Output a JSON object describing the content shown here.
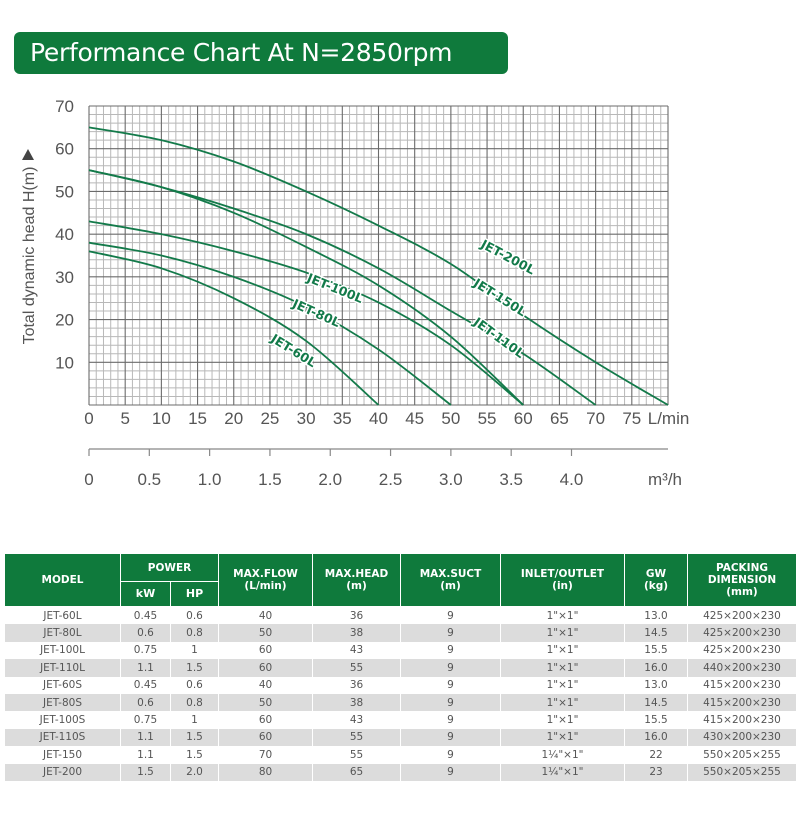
{
  "title": "Performance Chart At N=2850rpm",
  "chart_data": {
    "type": "line",
    "title": "Performance Chart At N=2850rpm",
    "xlabel": "L/min",
    "x2label": "m³/h",
    "ylabel": "Total dynamic head H(m)",
    "xlim": [
      0,
      80
    ],
    "ylim": [
      0,
      70
    ],
    "grid": true,
    "x_ticks": [
      0,
      5,
      10,
      15,
      20,
      25,
      30,
      35,
      40,
      45,
      50,
      55,
      60,
      65,
      70,
      75
    ],
    "x2_ticks": [
      "0",
      "0.5",
      "1.0",
      "1.5",
      "2.0",
      "2.5",
      "3.0",
      "3.5",
      "4.0"
    ],
    "y_ticks": [
      10,
      20,
      30,
      40,
      50,
      60,
      70
    ],
    "series": [
      {
        "name": "JET-200L",
        "x": [
          0,
          10,
          20,
          30,
          40,
          50,
          60,
          70,
          80
        ],
        "y": [
          65,
          62,
          57,
          50,
          42,
          33,
          21,
          10,
          0
        ]
      },
      {
        "name": "JET-150L",
        "x": [
          0,
          10,
          20,
          30,
          40,
          50,
          60,
          70
        ],
        "y": [
          55,
          51,
          46,
          40,
          32,
          22,
          12,
          0
        ]
      },
      {
        "name": "JET-110L",
        "x": [
          0,
          10,
          20,
          30,
          40,
          50,
          60
        ],
        "y": [
          55,
          51,
          45,
          37,
          28,
          16,
          0
        ]
      },
      {
        "name": "JET-100L",
        "x": [
          0,
          10,
          20,
          30,
          40,
          50,
          60
        ],
        "y": [
          43,
          40,
          36,
          31,
          24,
          14,
          0
        ]
      },
      {
        "name": "JET-80L",
        "x": [
          0,
          10,
          20,
          30,
          40,
          50
        ],
        "y": [
          38,
          35,
          30,
          23,
          13,
          0
        ]
      },
      {
        "name": "JET-60L",
        "x": [
          0,
          10,
          20,
          30,
          40
        ],
        "y": [
          36,
          32,
          25,
          15,
          0
        ]
      }
    ],
    "labels": [
      {
        "text": "JET-200L",
        "x": 54,
        "y": 37,
        "angle": 28
      },
      {
        "text": "JET-150L",
        "x": 53,
        "y": 28,
        "angle": 32
      },
      {
        "text": "JET-110L",
        "x": 53,
        "y": 19,
        "angle": 36
      },
      {
        "text": "JET-100L",
        "x": 30,
        "y": 29,
        "angle": 22
      },
      {
        "text": "JET-80L",
        "x": 28,
        "y": 23,
        "angle": 24
      },
      {
        "text": "JET-60L",
        "x": 25,
        "y": 15,
        "angle": 32
      }
    ],
    "colors": {
      "curve": "#137a4a",
      "grid_major": "#6b6b6b",
      "grid_minor": "#b8b8b8",
      "label": "#137a4a"
    }
  },
  "table": {
    "headers": {
      "model": "MODEL",
      "power": "POWER",
      "kw": "kW",
      "hp": "HP",
      "max_flow": "MAX.FLOW\n(L/min)",
      "max_head": "MAX.HEAD\n(m)",
      "max_suct": "MAX.SUCT\n(m)",
      "inlet_outlet": "INLET/OUTLET\n(in)",
      "gw": "GW\n(kg)",
      "packing": "PACKING\nDIMENSION\n(mm)"
    },
    "rows": [
      [
        "JET-60L",
        "0.45",
        "0.6",
        "40",
        "36",
        "9",
        "1\"×1\"",
        "13.0",
        "425×200×230"
      ],
      [
        "JET-80L",
        "0.6",
        "0.8",
        "50",
        "38",
        "9",
        "1\"×1\"",
        "14.5",
        "425×200×230"
      ],
      [
        "JET-100L",
        "0.75",
        "1",
        "60",
        "43",
        "9",
        "1\"×1\"",
        "15.5",
        "425×200×230"
      ],
      [
        "JET-110L",
        "1.1",
        "1.5",
        "60",
        "55",
        "9",
        "1\"×1\"",
        "16.0",
        "440×200×230"
      ],
      [
        "JET-60S",
        "0.45",
        "0.6",
        "40",
        "36",
        "9",
        "1\"×1\"",
        "13.0",
        "415×200×230"
      ],
      [
        "JET-80S",
        "0.6",
        "0.8",
        "50",
        "38",
        "9",
        "1\"×1\"",
        "14.5",
        "415×200×230"
      ],
      [
        "JET-100S",
        "0.75",
        "1",
        "60",
        "43",
        "9",
        "1\"×1\"",
        "15.5",
        "415×200×230"
      ],
      [
        "JET-110S",
        "1.1",
        "1.5",
        "60",
        "55",
        "9",
        "1\"×1\"",
        "16.0",
        "430×200×230"
      ],
      [
        "JET-150",
        "1.1",
        "1.5",
        "70",
        "55",
        "9",
        "1¼\"×1\"",
        "22",
        "550×205×255"
      ],
      [
        "JET-200",
        "1.5",
        "2.0",
        "80",
        "65",
        "9",
        "1¼\"×1\"",
        "23",
        "550×205×255"
      ]
    ]
  },
  "colors": {
    "brand_green": "#0f7a3c",
    "row_alt": "#dcdcdc",
    "text": "#555555"
  }
}
